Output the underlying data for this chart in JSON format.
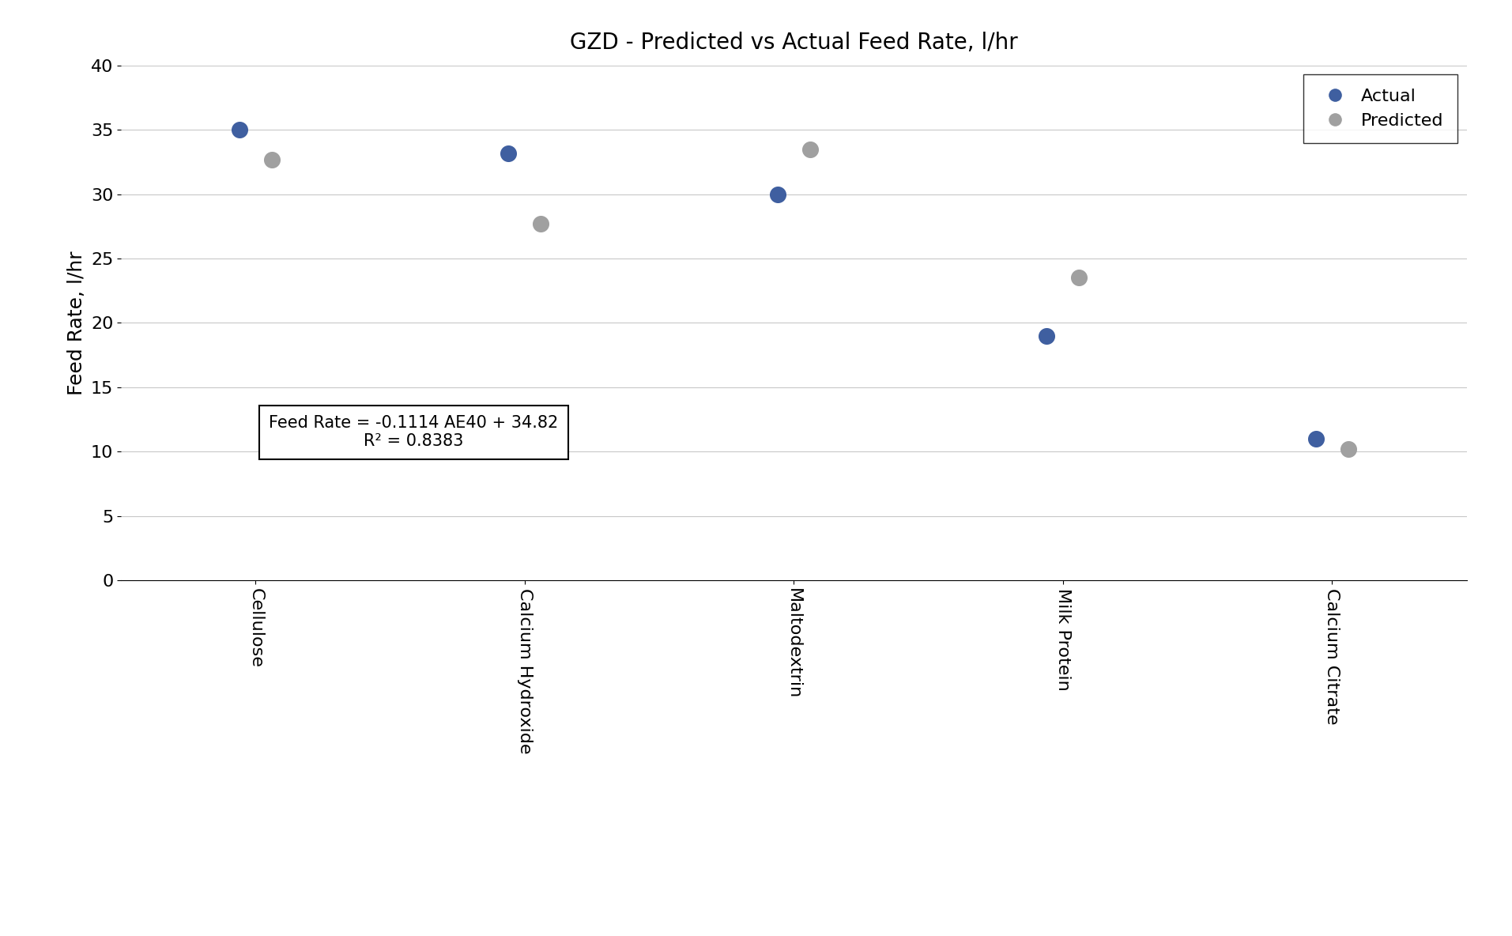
{
  "title": "GZD - Predicted vs Actual Feed Rate, l/hr",
  "ylabel": "Feed Rate, l/hr",
  "categories": [
    "Cellulose",
    "Calcium Hydroxide",
    "Maltodextrin",
    "Milk Protein",
    "Calcium Citrate"
  ],
  "actual_values": [
    35.0,
    33.2,
    30.0,
    19.0,
    11.0
  ],
  "predicted_values": [
    32.7,
    27.7,
    33.5,
    23.5,
    10.2
  ],
  "actual_color": "#3F5FA0",
  "predicted_color": "#A0A0A0",
  "ylim": [
    0,
    40
  ],
  "yticks": [
    0,
    5,
    10,
    15,
    20,
    25,
    30,
    35,
    40
  ],
  "marker_size": 200,
  "annotation_line1": "Feed Rate = -0.1114 AE40 + 34.82",
  "annotation_line2": "R² = 0.8383",
  "background_color": "#ffffff",
  "grid_color": "#c8c8c8",
  "title_fontsize": 20,
  "label_fontsize": 18,
  "tick_fontsize": 16,
  "legend_fontsize": 16,
  "annot_fontsize": 15
}
